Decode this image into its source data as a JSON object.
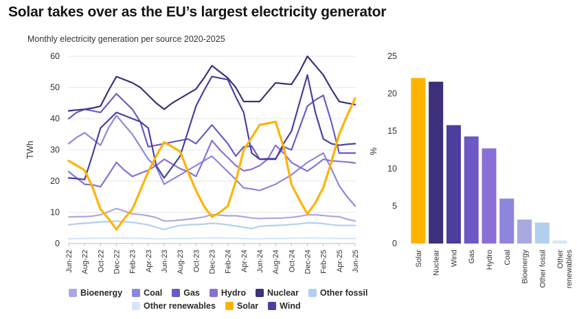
{
  "title": "Solar takes over as the EU’s largest electricity generator",
  "subtitle": "Monthly electricity generation per source 2020-2025",
  "colors": {
    "Bioenergy": "#a9a9df",
    "Coal": "#8e86dc",
    "Gas": "#6c59c3",
    "Hydro": "#8a6fd6",
    "Nuclear": "#3d2f7a",
    "Other fossil": "#b3cff0",
    "Other renewables": "#d6e6f8",
    "Solar": "#ffb300",
    "Wind": "#4a3e9e"
  },
  "legend": {
    "row1": [
      "Bioenergy",
      "Coal",
      "Gas",
      "Hydro",
      "Nuclear",
      "Other fossil"
    ],
    "row2": [
      "Other renewables",
      "Solar",
      "Wind"
    ]
  },
  "chart_data": [
    {
      "type": "line",
      "title": "Monthly electricity generation per source 2020-2025",
      "xlabel": "",
      "ylabel": "TWh",
      "ylim": [
        0,
        60
      ],
      "yticks": [
        0,
        10,
        20,
        30,
        40,
        50,
        60
      ],
      "x": [
        "Jun-22",
        "Jul-22",
        "Aug-22",
        "Sep-22",
        "Oct-22",
        "Nov-22",
        "Dec-22",
        "Jan-23",
        "Feb-23",
        "Mar-23",
        "Apr-23",
        "May-23",
        "Jun-23",
        "Jul-23",
        "Aug-23",
        "Sep-23",
        "Oct-23",
        "Nov-23",
        "Dec-23",
        "Jan-24",
        "Feb-24",
        "Mar-24",
        "Apr-24",
        "May-24",
        "Jun-24",
        "Jul-24",
        "Aug-24",
        "Sep-24",
        "Oct-24",
        "Nov-24",
        "Dec-24",
        "Jan-25",
        "Feb-25",
        "Mar-25",
        "Apr-25",
        "May-25",
        "Jun-25"
      ],
      "x_tick_labels": [
        "Jun-22",
        "Aug-22",
        "Oct-22",
        "Dec-22",
        "Feb-23",
        "Apr-23",
        "Jun-23",
        "Aug-23",
        "Oct-23",
        "Dec-23",
        "Feb-24",
        "Apr-24",
        "Jun-24",
        "Aug-24",
        "Oct-24",
        "Dec-24",
        "Feb-25",
        "Apr-25",
        "Jun-25"
      ],
      "grid": true,
      "series": [
        {
          "name": "Other renewables",
          "values": [
            1.5,
            1.6,
            1.6,
            1.7,
            1.7,
            1.7,
            1.8,
            1.8,
            1.7,
            1.7,
            1.6,
            1.5,
            1.5,
            1.6,
            1.6,
            1.6,
            1.7,
            1.7,
            1.8,
            1.8,
            1.7,
            1.7,
            1.6,
            1.5,
            1.5,
            1.6,
            1.6,
            1.6,
            1.7,
            1.7,
            1.8,
            1.8,
            1.7,
            1.7,
            1.6,
            1.6,
            1.6
          ]
        },
        {
          "name": "Other fossil",
          "values": [
            6,
            6.3,
            6.5,
            6.7,
            6.9,
            7,
            7.2,
            7,
            6.8,
            6.4,
            6,
            5.2,
            4.5,
            5.2,
            5.8,
            6,
            6.1,
            6.2,
            6.5,
            6.3,
            6,
            5.6,
            5.2,
            4.8,
            5.5,
            5.7,
            5.8,
            5.9,
            6.1,
            6.3,
            6.6,
            6.6,
            6.4,
            6,
            5.8,
            5.8,
            5.8
          ]
        },
        {
          "name": "Bioenergy",
          "values": [
            8.5,
            8.6,
            8.6,
            8.8,
            9.2,
            10.2,
            11.2,
            10.4,
            9.5,
            9.3,
            8.9,
            8.3,
            7.2,
            7.3,
            7.5,
            7.8,
            8.1,
            8.5,
            9.3,
            9.1,
            8.9,
            8.9,
            8.6,
            8.2,
            8,
            8.1,
            8.1,
            8.2,
            8.4,
            8.7,
            9.2,
            9.2,
            9,
            8.7,
            8.6,
            7.8,
            7.2
          ]
        },
        {
          "name": "Coal",
          "values": [
            32,
            34,
            35.5,
            33.5,
            31.5,
            37,
            41,
            38,
            35,
            31,
            27,
            24.5,
            19,
            20.5,
            22,
            23.5,
            25,
            26.5,
            28,
            25.5,
            23,
            20.5,
            17.8,
            17.5,
            17,
            18,
            19,
            20.5,
            22,
            24,
            26,
            27.5,
            29,
            24,
            18.5,
            15,
            12
          ]
        },
        {
          "name": "Hydro",
          "values": [
            23,
            21,
            19,
            18.8,
            18.2,
            22,
            26,
            23.5,
            21.5,
            22.5,
            23.5,
            25,
            27,
            25.5,
            24,
            23,
            21.5,
            27,
            33,
            30,
            27.5,
            25,
            23.3,
            23.8,
            25,
            27,
            31.5,
            29,
            26,
            24.5,
            23.2,
            25,
            27,
            26.5,
            26.3,
            26.1,
            25.8
          ]
        },
        {
          "name": "Gas",
          "values": [
            40,
            42,
            43,
            42.5,
            42,
            45,
            48,
            45.5,
            43,
            39,
            31,
            31.5,
            32,
            32.5,
            33,
            33.5,
            32,
            35,
            38,
            35,
            32,
            28,
            31,
            31.2,
            27,
            27.2,
            27.2,
            31,
            30,
            37,
            44,
            46,
            47.5,
            39,
            29,
            29,
            29
          ]
        },
        {
          "name": "Wind",
          "values": [
            21,
            20.8,
            20.5,
            28.5,
            37,
            39.5,
            42,
            41,
            40,
            39,
            37,
            25,
            21,
            24.5,
            28,
            36,
            44,
            49,
            53.5,
            53,
            52.5,
            47,
            42,
            29,
            27,
            27,
            27,
            32,
            36,
            45,
            54,
            42,
            33.5,
            32,
            31.5,
            31.8,
            32
          ]
        },
        {
          "name": "Nuclear",
          "values": [
            42.5,
            42.8,
            43,
            43.4,
            44,
            49,
            53.5,
            52.5,
            51.5,
            50,
            47.5,
            45,
            43,
            45,
            46.5,
            48,
            49.5,
            53,
            57,
            55,
            53,
            50,
            45.5,
            45.5,
            45.5,
            48.5,
            51.5,
            51.2,
            51,
            55,
            60,
            57,
            54,
            49.5,
            45.5,
            45,
            44.5
          ]
        },
        {
          "name": "Solar",
          "values": [
            26.5,
            25,
            23.5,
            18,
            11,
            8,
            4.5,
            8,
            11,
            17,
            23,
            28,
            32.5,
            31,
            29.5,
            23,
            17,
            12,
            8.5,
            10,
            12,
            20,
            30,
            34,
            38,
            38.5,
            39,
            31,
            19,
            14,
            9.5,
            13,
            18,
            26,
            35,
            41,
            46.5
          ]
        }
      ]
    },
    {
      "type": "bar",
      "title": "",
      "xlabel": "",
      "ylabel": "%",
      "ylim": [
        0,
        25
      ],
      "yticks": [
        0,
        5,
        10,
        15,
        20,
        25
      ],
      "categories": [
        "Solar",
        "Nuclear",
        "Wind",
        "Gas",
        "Hydro",
        "Coal",
        "Bioenergy",
        "Other fossil",
        "Other renewables"
      ],
      "category_labels": [
        [
          "Solar"
        ],
        [
          "Nuclear"
        ],
        [
          "Wind"
        ],
        [
          "Gas"
        ],
        [
          "Hydro"
        ],
        [
          "Coal"
        ],
        [
          "Bioenergy"
        ],
        [
          "Other fossil"
        ],
        [
          "Other",
          "renewables"
        ]
      ],
      "values": [
        22.1,
        21.6,
        15.8,
        14.3,
        12.7,
        6.0,
        3.2,
        2.8,
        0.4
      ],
      "grid": false
    }
  ]
}
